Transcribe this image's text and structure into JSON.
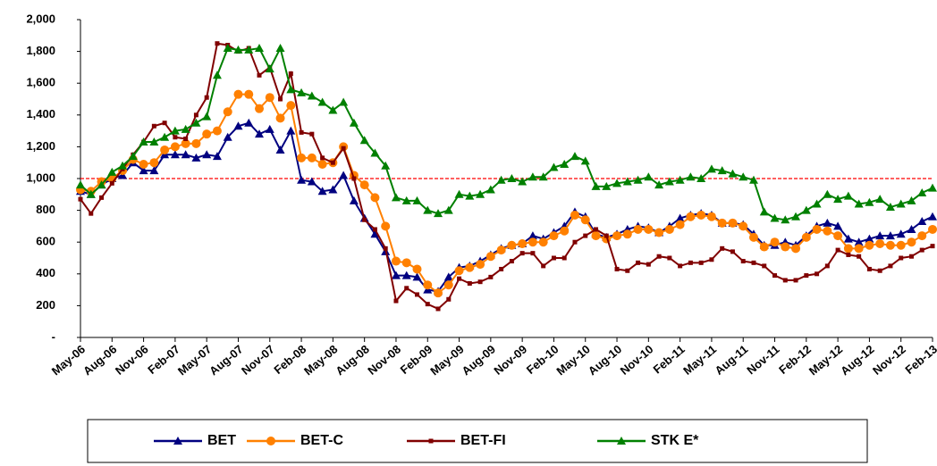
{
  "chart_data": {
    "type": "line",
    "categories": [
      "May-06",
      null,
      null,
      "Aug-06",
      null,
      null,
      "Nov-06",
      null,
      null,
      "Feb-07",
      null,
      null,
      "May-07",
      null,
      null,
      "Aug-07",
      null,
      null,
      "Nov-07",
      null,
      null,
      "Feb-08",
      null,
      null,
      "May-08",
      null,
      null,
      "Aug-08",
      null,
      null,
      "Nov-08",
      null,
      null,
      "Feb-09",
      null,
      null,
      "May-09",
      null,
      null,
      "Aug-09",
      null,
      null,
      "Nov-09",
      null,
      null,
      "Feb-10",
      null,
      null,
      "May-10",
      null,
      null,
      "Aug-10",
      null,
      null,
      "Nov-10",
      null,
      null,
      "Feb-11",
      null,
      null,
      "May-11",
      null,
      null,
      "Aug-11",
      null,
      null,
      "Nov-11",
      null,
      null,
      "Feb-12",
      null,
      null,
      "May-12",
      null,
      null,
      "Aug-12",
      null,
      null,
      "Nov-12",
      null,
      null,
      "Feb-13"
    ],
    "series": [
      {
        "name": "BET",
        "color": "#000080",
        "marker": "triangle",
        "values": [
          920,
          900,
          960,
          1000,
          1020,
          1100,
          1050,
          1050,
          1150,
          1150,
          1150,
          1130,
          1150,
          1140,
          1260,
          1330,
          1350,
          1280,
          1310,
          1180,
          1300,
          990,
          980,
          920,
          930,
          1020,
          860,
          750,
          650,
          540,
          390,
          390,
          380,
          300,
          290,
          380,
          440,
          450,
          480,
          520,
          560,
          580,
          590,
          640,
          620,
          660,
          700,
          790,
          760,
          650,
          630,
          650,
          680,
          700,
          690,
          660,
          700,
          750,
          770,
          780,
          770,
          720,
          720,
          710,
          650,
          580,
          580,
          600,
          580,
          640,
          700,
          720,
          700,
          620,
          600,
          620,
          640,
          640,
          650,
          680,
          730,
          760
        ]
      },
      {
        "name": "BET-C",
        "color": "#ff8000",
        "marker": "circle",
        "values": [
          930,
          920,
          980,
          1000,
          1050,
          1120,
          1090,
          1100,
          1180,
          1200,
          1220,
          1220,
          1280,
          1300,
          1420,
          1530,
          1530,
          1440,
          1510,
          1380,
          1460,
          1130,
          1130,
          1090,
          1100,
          1200,
          1020,
          960,
          880,
          700,
          480,
          470,
          430,
          330,
          280,
          330,
          420,
          440,
          460,
          510,
          550,
          580,
          590,
          600,
          600,
          640,
          670,
          770,
          740,
          640,
          620,
          640,
          650,
          680,
          680,
          660,
          680,
          710,
          760,
          770,
          760,
          720,
          720,
          700,
          630,
          570,
          600,
          570,
          560,
          630,
          680,
          670,
          640,
          560,
          560,
          580,
          590,
          580,
          580,
          600,
          640,
          680
        ]
      },
      {
        "name": "BET-FI",
        "color": "#800000",
        "marker": "square",
        "values": [
          870,
          780,
          880,
          970,
          1060,
          1150,
          1230,
          1330,
          1350,
          1260,
          1250,
          1400,
          1510,
          1850,
          1840,
          1800,
          1820,
          1650,
          1700,
          1500,
          1660,
          1290,
          1280,
          1130,
          1100,
          1190,
          1000,
          740,
          680,
          560,
          230,
          310,
          270,
          210,
          180,
          240,
          370,
          340,
          350,
          380,
          430,
          480,
          530,
          530,
          450,
          500,
          500,
          600,
          640,
          680,
          640,
          430,
          420,
          470,
          460,
          510,
          500,
          450,
          470,
          470,
          490,
          560,
          540,
          480,
          470,
          450,
          390,
          360,
          360,
          390,
          400,
          450,
          550,
          520,
          510,
          430,
          420,
          450,
          500,
          510,
          550,
          575
        ]
      },
      {
        "name": "STK E*",
        "color": "#008000",
        "marker": "triangle",
        "values": [
          960,
          900,
          960,
          1040,
          1080,
          1140,
          1230,
          1230,
          1260,
          1300,
          1310,
          1350,
          1390,
          1650,
          1820,
          1810,
          1810,
          1820,
          1690,
          1820,
          1560,
          1540,
          1520,
          1480,
          1430,
          1480,
          1350,
          1240,
          1160,
          1080,
          880,
          860,
          860,
          800,
          780,
          800,
          900,
          890,
          900,
          930,
          990,
          1000,
          980,
          1010,
          1010,
          1070,
          1090,
          1140,
          1110,
          950,
          950,
          970,
          980,
          990,
          1010,
          960,
          980,
          990,
          1010,
          1000,
          1060,
          1050,
          1030,
          1010,
          990,
          790,
          750,
          740,
          760,
          800,
          840,
          900,
          870,
          890,
          840,
          850,
          870,
          820,
          840,
          860,
          910,
          940
        ]
      }
    ],
    "ylim": [
      0,
      2000
    ],
    "yticks": [
      {
        "value": 0,
        "label": "-"
      },
      200,
      400,
      600,
      800,
      {
        "value": 1000,
        "label": "1,000"
      },
      {
        "value": 1200,
        "label": "1,200"
      },
      {
        "value": 1400,
        "label": "1,400"
      },
      {
        "value": 1600,
        "label": "1,600"
      },
      {
        "value": 1800,
        "label": "1,800"
      },
      {
        "value": 2000,
        "label": "2,000"
      }
    ],
    "reference_line": {
      "value": 1000,
      "color": "#ff0000"
    },
    "legend": "bottom"
  }
}
